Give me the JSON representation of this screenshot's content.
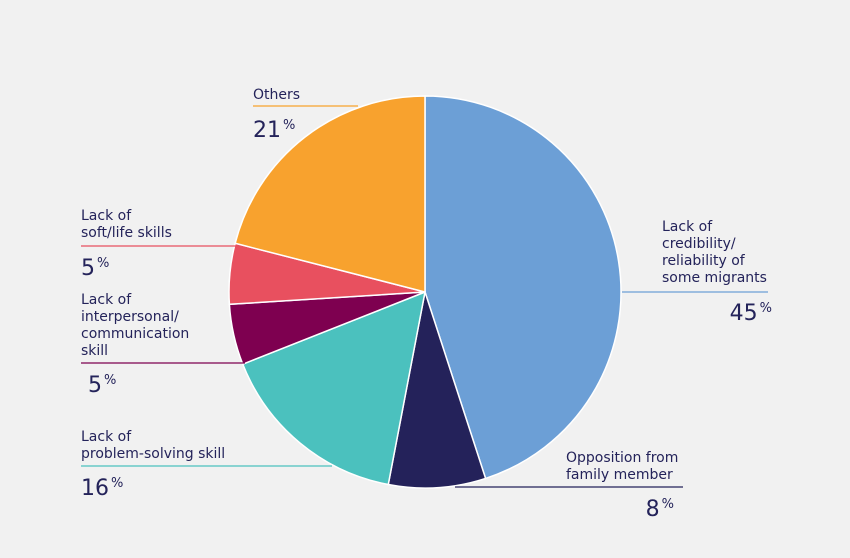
{
  "chart_data": {
    "type": "pie",
    "title": "",
    "legend": "none",
    "categories": [
      "Lack of credibility/ reliability of some migrants",
      "Opposition from family member",
      "Lack of problem-solving skill",
      "Lack of interpersonal/ communication skill",
      "Lack of soft/life skills",
      "Others"
    ],
    "values": [
      45,
      8,
      16,
      5,
      5,
      21
    ],
    "unit": "%",
    "colors": [
      "#6c9fd6",
      "#24225a",
      "#4bc1be",
      "#7e0050",
      "#e8505f",
      "#f8a22e"
    ],
    "slices": [
      {
        "name": "credibility",
        "label_lines": [
          "Lack of",
          "credibility/",
          "reliability of",
          "some migrants"
        ],
        "value_text": "45",
        "percent_sign": "%",
        "color": "#6c9fd6"
      },
      {
        "name": "family-opposition",
        "label_lines": [
          "Opposition from",
          "family member"
        ],
        "value_text": "8",
        "percent_sign": "%",
        "color": "#24225a"
      },
      {
        "name": "problem-solving",
        "label_lines": [
          "Lack of",
          "problem-solving skill"
        ],
        "value_text": "16",
        "percent_sign": "%",
        "color": "#4bc1be"
      },
      {
        "name": "interpersonal",
        "label_lines": [
          "Lack of",
          "interpersonal/",
          "communication",
          "skill"
        ],
        "value_text": "5",
        "percent_sign": "%",
        "color": "#7e0050"
      },
      {
        "name": "soft-life-skills",
        "label_lines": [
          "Lack of",
          "soft/life skills"
        ],
        "value_text": "5",
        "percent_sign": "%",
        "color": "#e8505f"
      },
      {
        "name": "others",
        "label_lines": [
          "Others"
        ],
        "value_text": "21",
        "percent_sign": "%",
        "color": "#f8a22e"
      }
    ]
  }
}
